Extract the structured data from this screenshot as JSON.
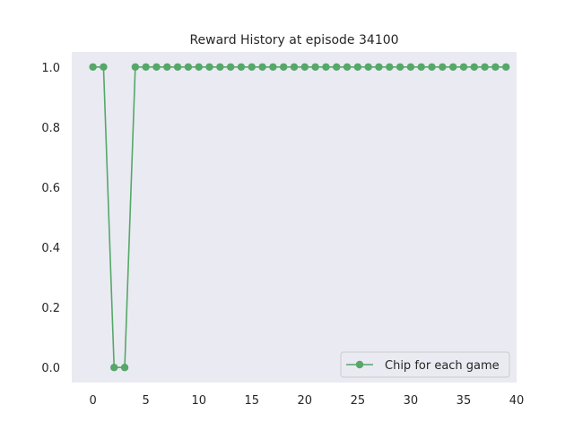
{
  "chart_data": {
    "type": "line",
    "title": "Reward History at episode 34100",
    "xlabel": "",
    "ylabel": "",
    "xlim": [
      -2,
      40
    ],
    "ylim": [
      -0.05,
      1.05
    ],
    "xticks": [
      "0",
      "5",
      "10",
      "15",
      "20",
      "25",
      "30",
      "35",
      "40"
    ],
    "yticks": [
      "0.0",
      "0.2",
      "0.4",
      "0.6",
      "0.8",
      "1.0"
    ],
    "grid": false,
    "legend_position": "lower-right",
    "background_color": "#eaeaf2",
    "series": [
      {
        "name": "Chip for each game",
        "color": "#55a868",
        "marker": "circle",
        "x": [
          0,
          1,
          2,
          3,
          4,
          5,
          6,
          7,
          8,
          9,
          10,
          11,
          12,
          13,
          14,
          15,
          16,
          17,
          18,
          19,
          20,
          21,
          22,
          23,
          24,
          25,
          26,
          27,
          28,
          29,
          30,
          31,
          32,
          33,
          34,
          35,
          36,
          37,
          38,
          39
        ],
        "y": [
          1,
          1,
          0,
          0,
          1,
          1,
          1,
          1,
          1,
          1,
          1,
          1,
          1,
          1,
          1,
          1,
          1,
          1,
          1,
          1,
          1,
          1,
          1,
          1,
          1,
          1,
          1,
          1,
          1,
          1,
          1,
          1,
          1,
          1,
          1,
          1,
          1,
          1,
          1,
          1
        ]
      }
    ]
  }
}
